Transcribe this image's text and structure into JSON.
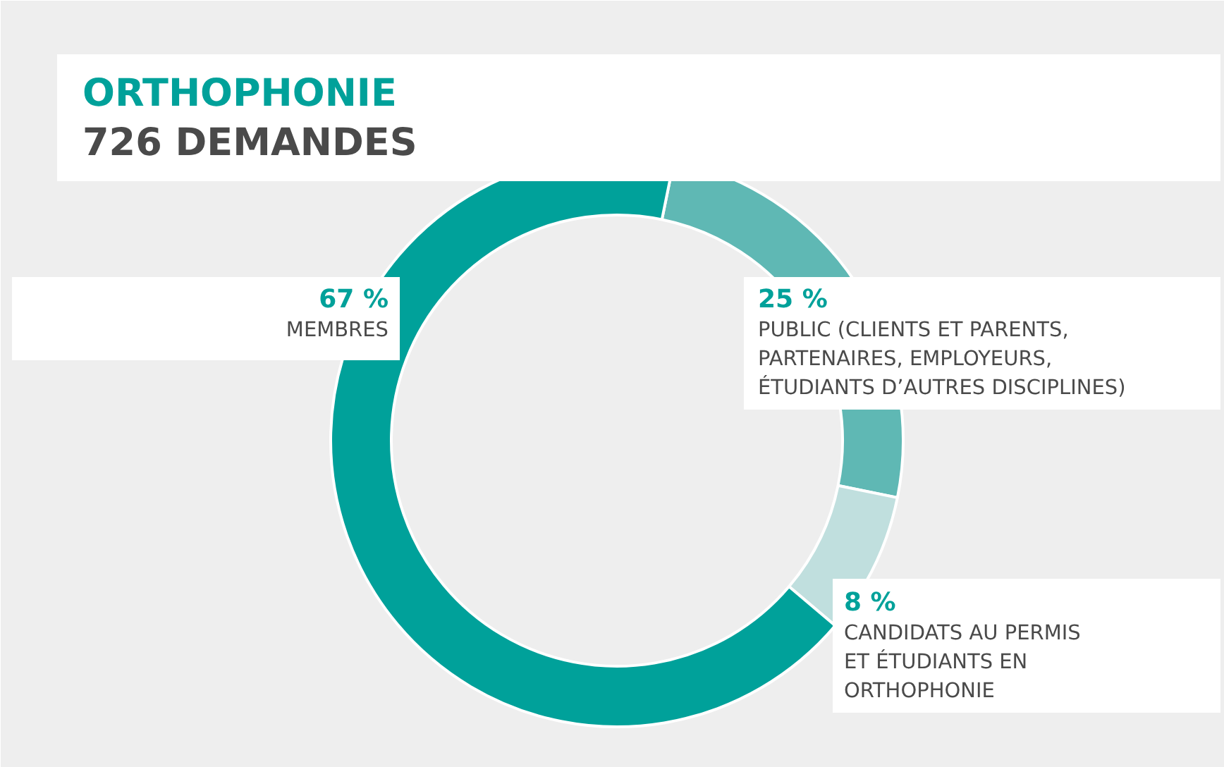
{
  "chart_data": {
    "type": "donut",
    "title": "ORTHOPHONIE",
    "subtitle": "726 DEMANDES",
    "categories": [
      "PUBLIC (CLIENTS ET PARENTS, PARTENAIRES, EMPLOYEURS, ÉTUDIANTS D’AUTRES DISCIPLINES)",
      "CANDIDATS AU PERMIS ET ÉTUDIANTS EN ORTHOPHONIE",
      "MEMBRES"
    ],
    "values": [
      25,
      8,
      67
    ],
    "value_labels": [
      "25 %",
      "8 %",
      "67 %"
    ],
    "colors": [
      "#5fb8b4",
      "#c0dfde",
      "#00a19a"
    ]
  }
}
